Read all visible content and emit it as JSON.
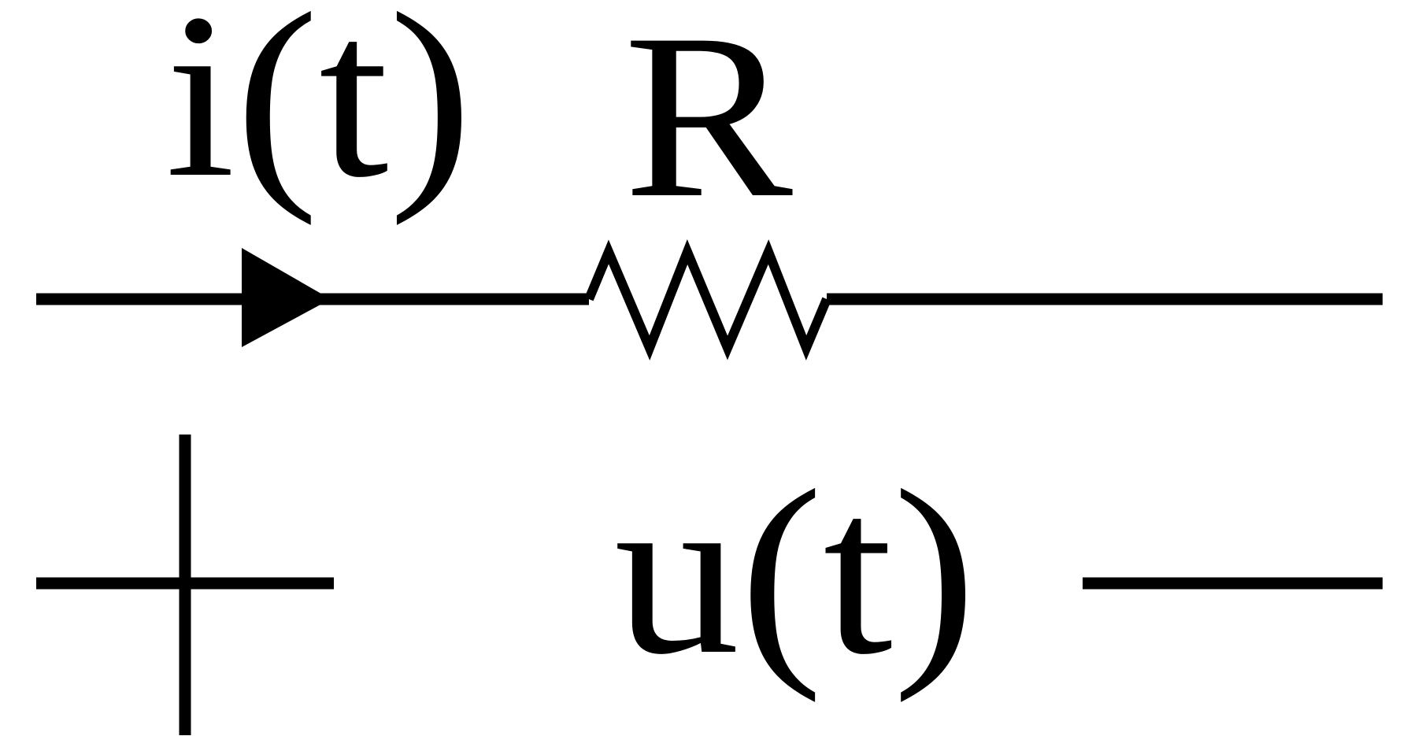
{
  "diagram": {
    "current_label": "i(t)",
    "resistor_label": "R",
    "voltage_label": "u(t)",
    "plus_sign": "+",
    "minus_sign": "—",
    "stroke_color": "#000000",
    "background_color": "#ffffff"
  }
}
